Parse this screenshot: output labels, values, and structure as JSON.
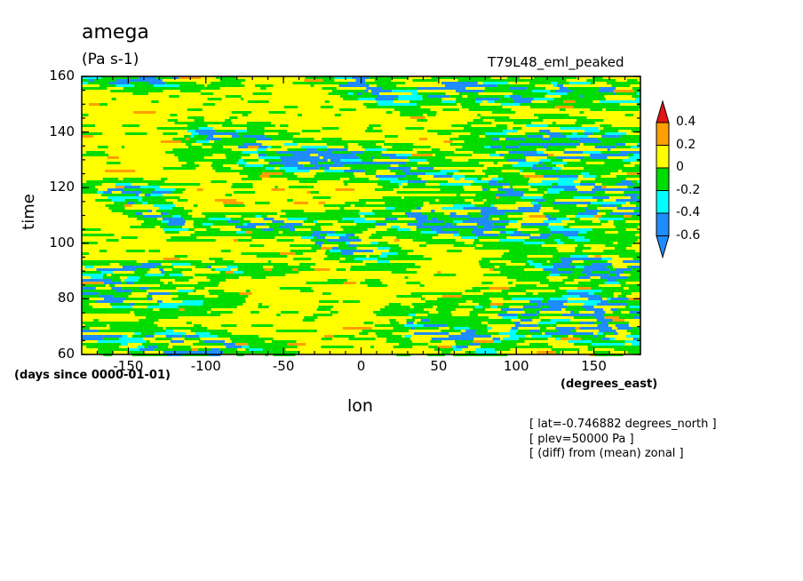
{
  "plot": {
    "title": "amega",
    "units": "(Pa s-1)",
    "run_name": "T79L48_eml_peaked",
    "x_axis_label": "lon",
    "x_axis_units": "(degrees_east)",
    "y_axis_label": "time",
    "y_axis_units": "(days since 0000-01-01)",
    "info_lines": [
      "[ lat=-0.746882 degrees_north ]",
      "[ plev=50000 Pa ]",
      "[ (diff) from (mean) zonal ]"
    ]
  },
  "chart_data": {
    "type": "heatmap",
    "variable": "amega",
    "units": "(Pa s-1)",
    "xlabel": "lon",
    "ylabel": "time",
    "xlim": [
      -180,
      180
    ],
    "ylim": [
      60,
      160
    ],
    "x_ticks": [
      -150,
      -100,
      -50,
      0,
      50,
      100,
      150
    ],
    "x_tick_labels": [
      "-150",
      "-100",
      "-50",
      "0",
      "50",
      "100",
      "150"
    ],
    "y_ticks": [
      60,
      80,
      100,
      120,
      140,
      160
    ],
    "y_tick_labels": [
      "60",
      "80",
      "100",
      "120",
      "140",
      "160"
    ],
    "colorbar": {
      "levels": [
        -0.6,
        -0.4,
        -0.2,
        0,
        0.2,
        0.4
      ],
      "level_labels": [
        "-0.6",
        "-0.4",
        "-0.2",
        "0",
        "0.2",
        "0.4"
      ],
      "colors": [
        "#1e8cff",
        "#1e8cff",
        "#00ffff",
        "#00dc00",
        "#ffff00",
        "#ffa000",
        "#e61414"
      ],
      "orientation": "vertical",
      "placement": "right"
    }
  }
}
